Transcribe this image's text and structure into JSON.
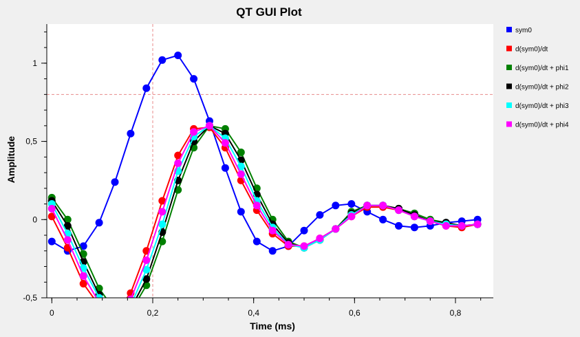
{
  "window": {
    "background": "#f0f0f0",
    "plot_background": "#ffffff"
  },
  "chart_data": {
    "type": "line",
    "title": "QT GUI Plot",
    "xlabel": "Time (ms)",
    "ylabel": "Amplitude",
    "xlim": [
      -0.01,
      0.875
    ],
    "ylim": [
      -0.5,
      1.25
    ],
    "xticks": [
      0,
      0.2,
      0.4,
      0.6,
      0.8
    ],
    "xtick_labels": [
      "0",
      "0,2",
      "0,4",
      "0,6",
      "0,8"
    ],
    "yticks": [
      -0.5,
      0,
      0.5,
      1
    ],
    "ytick_labels": [
      "-0,5",
      "0",
      "0,5",
      "1"
    ],
    "grid": false,
    "legend_position": "right",
    "marker_line": {
      "x": 0.2,
      "y": 0.8,
      "color": "#e88a8a"
    },
    "x": [
      0,
      0.03125,
      0.0625,
      0.09375,
      0.125,
      0.15625,
      0.1875,
      0.21875,
      0.25,
      0.28125,
      0.3125,
      0.34375,
      0.375,
      0.40625,
      0.4375,
      0.46875,
      0.5,
      0.53125,
      0.5625,
      0.59375,
      0.625,
      0.65625,
      0.6875,
      0.71875,
      0.75,
      0.78125,
      0.8125,
      0.84375
    ],
    "series": [
      {
        "name": "sym0",
        "color": "#0000ff",
        "values": [
          -0.14,
          -0.2,
          -0.17,
          -0.02,
          0.24,
          0.55,
          0.84,
          1.02,
          1.05,
          0.9,
          0.63,
          0.33,
          0.05,
          -0.14,
          -0.2,
          -0.17,
          -0.07,
          0.03,
          0.09,
          0.1,
          0.05,
          0.0,
          -0.04,
          -0.05,
          -0.04,
          -0.02,
          -0.01,
          0.0
        ]
      },
      {
        "name": "d(sym0)/dt",
        "color": "#ff0000",
        "values": [
          0.02,
          -0.18,
          -0.41,
          -0.55,
          -0.6,
          -0.47,
          -0.2,
          0.12,
          0.41,
          0.58,
          0.59,
          0.46,
          0.25,
          0.06,
          -0.09,
          -0.17,
          -0.17,
          -0.12,
          -0.06,
          0.02,
          0.08,
          0.08,
          0.06,
          0.02,
          -0.01,
          -0.04,
          -0.05,
          -0.03
        ]
      },
      {
        "name": "d(sym0)/dt + phi1",
        "color": "#008000",
        "values": [
          0.14,
          0.0,
          -0.22,
          -0.44,
          -0.58,
          -0.59,
          -0.42,
          -0.14,
          0.19,
          0.46,
          0.6,
          0.58,
          0.43,
          0.2,
          0.0,
          -0.14,
          -0.18,
          -0.13,
          -0.06,
          0.05,
          0.09,
          0.09,
          0.07,
          0.04,
          0.0,
          -0.02,
          -0.04,
          -0.03
        ]
      },
      {
        "name": "d(sym0)/dt + phi2",
        "color": "#000000",
        "values": [
          0.12,
          -0.04,
          -0.27,
          -0.48,
          -0.59,
          -0.57,
          -0.38,
          -0.08,
          0.25,
          0.5,
          0.6,
          0.55,
          0.38,
          0.16,
          -0.03,
          -0.15,
          -0.18,
          -0.13,
          -0.06,
          0.04,
          0.09,
          0.09,
          0.07,
          0.03,
          -0.01,
          -0.02,
          -0.04,
          -0.03
        ]
      },
      {
        "name": "d(sym0)/dt + phi3",
        "color": "#00ffff",
        "values": [
          0.1,
          -0.09,
          -0.31,
          -0.5,
          -0.6,
          -0.55,
          -0.32,
          -0.03,
          0.31,
          0.53,
          0.6,
          0.52,
          0.34,
          0.12,
          -0.05,
          -0.16,
          -0.18,
          -0.13,
          -0.06,
          0.03,
          0.09,
          0.09,
          0.06,
          0.02,
          -0.01,
          -0.03,
          -0.04,
          -0.03
        ]
      },
      {
        "name": "d(sym0)/dt + phi4",
        "color": "#ff00ff",
        "values": [
          0.07,
          -0.13,
          -0.36,
          -0.53,
          -0.6,
          -0.51,
          -0.26,
          0.05,
          0.36,
          0.56,
          0.6,
          0.49,
          0.29,
          0.09,
          -0.07,
          -0.16,
          -0.17,
          -0.12,
          -0.06,
          0.02,
          0.09,
          0.09,
          0.06,
          0.02,
          -0.01,
          -0.04,
          -0.04,
          -0.03
        ]
      }
    ]
  }
}
